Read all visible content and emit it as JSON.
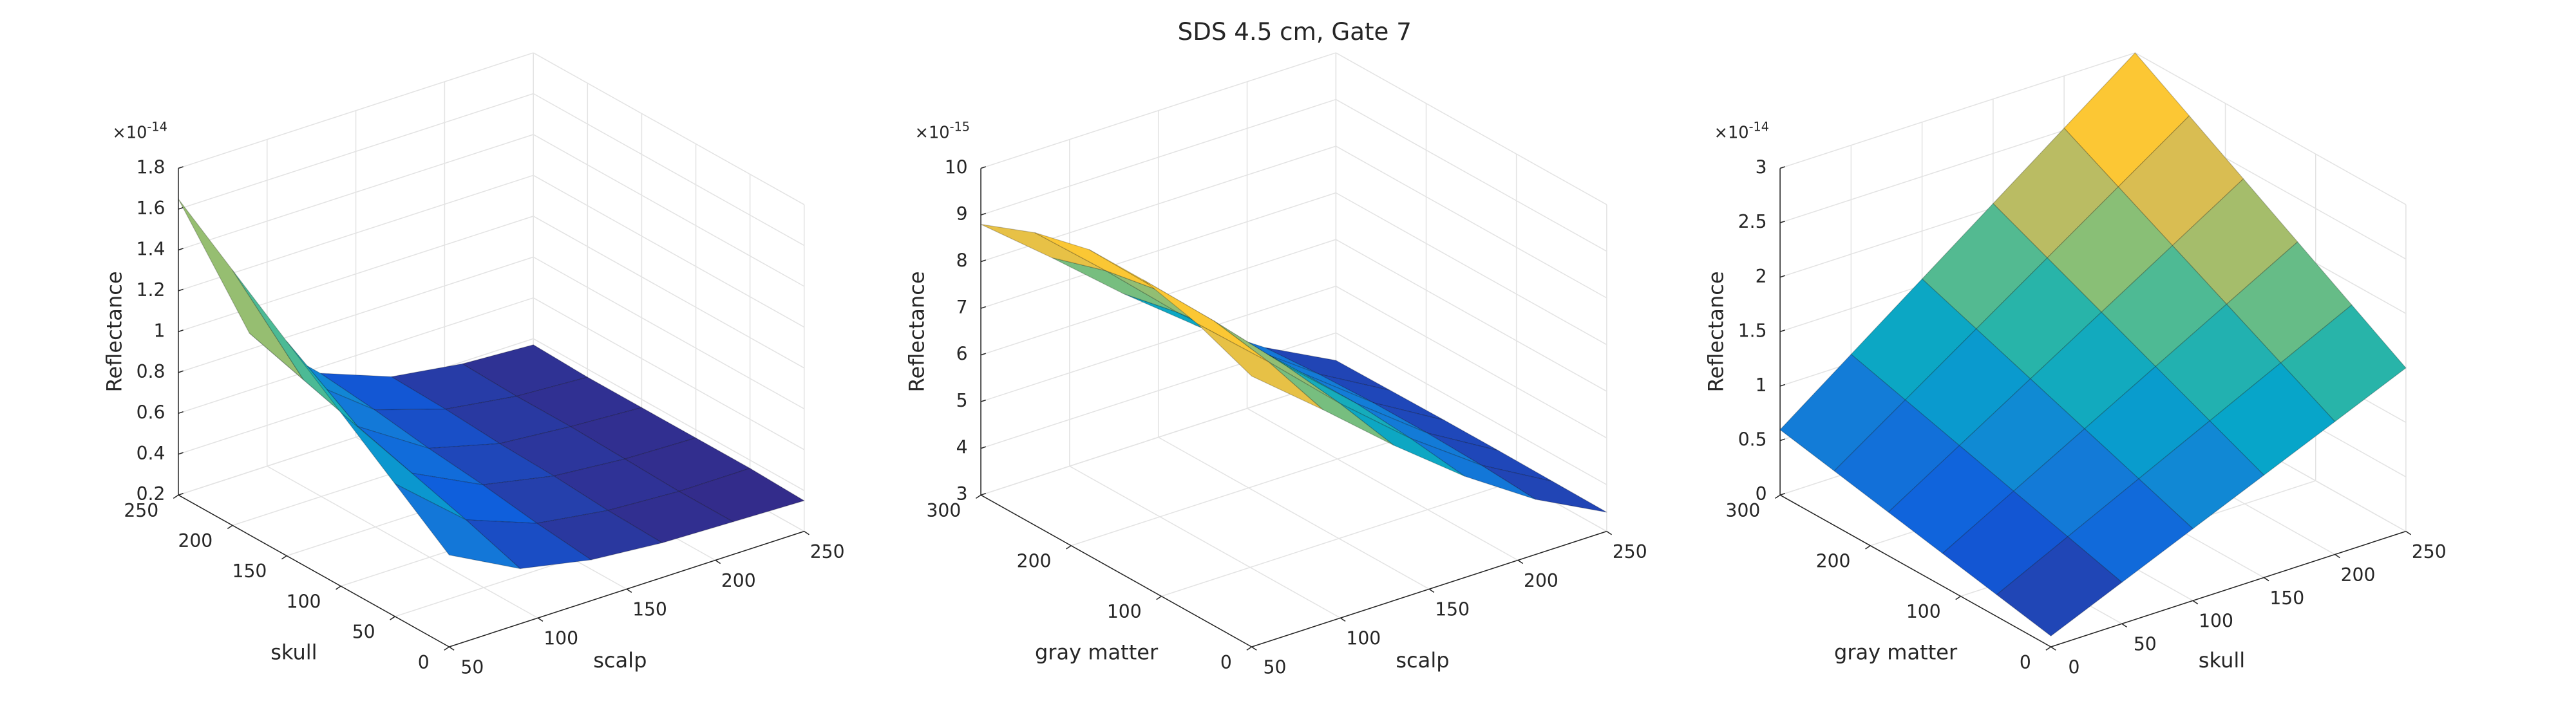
{
  "title": "SDS 4.5 cm, Gate 7",
  "colormap": [
    "#352a87",
    "#0f5cdd",
    "#1481d6",
    "#06a4ca",
    "#2eb7a4",
    "#87bf77",
    "#d1bb59",
    "#fec832",
    "#f9fb0e"
  ],
  "chart_data": [
    {
      "type": "surface",
      "xlabel": "scalp",
      "ylabel": "skull",
      "zlabel": "Reflectance",
      "z_multiplier": "×10",
      "z_exponent": "-14",
      "x": [
        50,
        90,
        130,
        170,
        210,
        250
      ],
      "y": [
        0,
        50,
        100,
        150,
        200,
        250
      ],
      "z": [
        [
          0.65,
          0.47,
          0.4,
          0.37,
          0.36,
          0.35
        ],
        [
          0.85,
          0.56,
          0.43,
          0.38,
          0.36,
          0.36
        ],
        [
          1.05,
          0.64,
          0.47,
          0.4,
          0.37,
          0.36
        ],
        [
          1.25,
          0.72,
          0.5,
          0.41,
          0.38,
          0.36
        ],
        [
          1.45,
          0.8,
          0.54,
          0.43,
          0.38,
          0.36
        ],
        [
          1.65,
          0.88,
          0.57,
          0.44,
          0.39,
          0.37
        ]
      ],
      "xlim": [
        50,
        250
      ],
      "ylim": [
        0,
        250
      ],
      "zlim": [
        0.2,
        1.8
      ],
      "xticks": [
        50,
        100,
        150,
        200,
        250
      ],
      "yticks": [
        0,
        50,
        100,
        150,
        200,
        250
      ],
      "zticks": [
        0.2,
        0.4,
        0.6,
        0.8,
        1,
        1.2,
        1.4,
        1.6,
        1.8
      ],
      "grid": true
    },
    {
      "type": "surface",
      "xlabel": "scalp",
      "ylabel": "gray matter",
      "zlabel": "Reflectance",
      "z_multiplier": "×10",
      "z_exponent": "-15",
      "x": [
        50,
        90,
        130,
        170,
        210,
        250
      ],
      "y": [
        0,
        60,
        120,
        180,
        240,
        300
      ],
      "z": [
        [
          8.8,
          7.59,
          6.33,
          5.17,
          4.18,
          3.41
        ],
        [
          9.27,
          7.96,
          6.58,
          5.33,
          4.26,
          3.42
        ],
        [
          9.56,
          8.18,
          6.74,
          5.43,
          4.3,
          3.43
        ],
        [
          9.56,
          8.18,
          6.74,
          5.43,
          4.3,
          3.43
        ],
        [
          9.27,
          7.96,
          6.58,
          5.33,
          4.26,
          3.42
        ],
        [
          8.8,
          7.59,
          6.33,
          5.17,
          4.18,
          3.41
        ]
      ],
      "xlim": [
        50,
        250
      ],
      "ylim": [
        0,
        300
      ],
      "zlim": [
        3,
        10
      ],
      "xticks": [
        50,
        100,
        150,
        200,
        250
      ],
      "yticks": [
        0,
        100,
        200,
        300
      ],
      "zticks": [
        3,
        4,
        5,
        6,
        7,
        8,
        9,
        10
      ],
      "grid": true
    },
    {
      "type": "surface",
      "xlabel": "skull",
      "ylabel": "gray matter",
      "zlabel": "Reflectance",
      "z_multiplier": "×10",
      "z_exponent": "-14",
      "x": [
        0,
        50,
        100,
        150,
        200,
        250
      ],
      "y": [
        0,
        60,
        120,
        180,
        240,
        300
      ],
      "z": [
        [
          0.1,
          0.38,
          0.66,
          0.94,
          1.22,
          1.5
        ],
        [
          0.2,
          0.52,
          0.84,
          1.16,
          1.48,
          1.8
        ],
        [
          0.3,
          0.66,
          1.02,
          1.38,
          1.74,
          2.1
        ],
        [
          0.4,
          0.8,
          1.2,
          1.6,
          2.0,
          2.4
        ],
        [
          0.5,
          0.94,
          1.38,
          1.82,
          2.26,
          2.7
        ],
        [
          0.6,
          1.08,
          1.56,
          2.04,
          2.52,
          3.0
        ]
      ],
      "xlim": [
        0,
        250
      ],
      "ylim": [
        0,
        300
      ],
      "zlim": [
        0,
        3
      ],
      "xticks": [
        0,
        50,
        100,
        150,
        200,
        250
      ],
      "yticks": [
        0,
        100,
        200,
        300
      ],
      "zticks": [
        0,
        0.5,
        1,
        1.5,
        2,
        2.5,
        3
      ],
      "grid": true
    }
  ]
}
